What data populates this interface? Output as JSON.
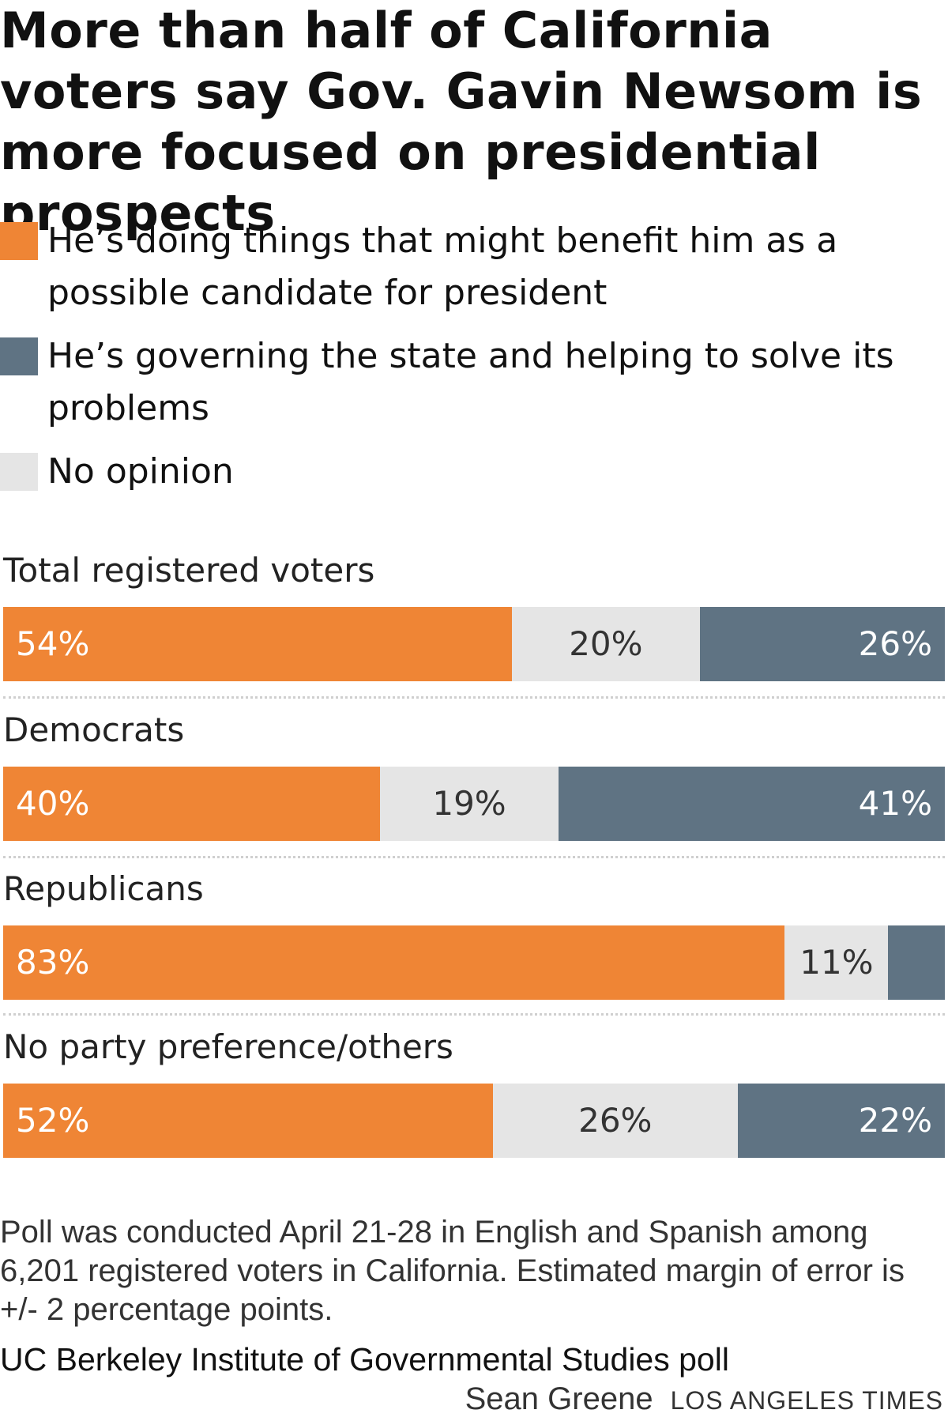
{
  "title": "More than half of California voters say Gov. Gavin Newsom is more focused on presidential prospects",
  "colors": {
    "benefit": "#ef8535",
    "no_opinion": "#e5e5e5",
    "governing": "#5f7383"
  },
  "legend": [
    {
      "key": "benefit",
      "label": "He’s doing things that might benefit him as a possible candidate for president"
    },
    {
      "key": "governing",
      "label": "He’s governing the state and helping to solve its problems"
    },
    {
      "key": "no_opinion",
      "label": "No opinion"
    }
  ],
  "chart_data": {
    "type": "bar",
    "orientation": "horizontal",
    "stacked": true,
    "title": "More than half of California voters say Gov. Gavin Newsom is more focused on presidential prospects",
    "categories": [
      "Total registered voters",
      "Democrats",
      "Republicans",
      "No party preference/others"
    ],
    "series": [
      {
        "name": "He’s doing things that might benefit him as a possible candidate for president",
        "key": "benefit",
        "values": [
          54,
          40,
          83,
          52
        ],
        "labels": [
          "54%",
          "40%",
          "83%",
          "52%"
        ]
      },
      {
        "name": "No opinion",
        "key": "no_opinion",
        "values": [
          20,
          19,
          11,
          26
        ],
        "labels": [
          "20%",
          "19%",
          "11%",
          "26%"
        ]
      },
      {
        "name": "He’s governing the state and helping to solve its problems",
        "key": "governing",
        "values": [
          26,
          41,
          6,
          22
        ],
        "labels": [
          "26%",
          "41%",
          "",
          "22%"
        ]
      }
    ],
    "xlim": [
      0,
      100
    ],
    "unit": "%",
    "grid": false,
    "legend_position": "top"
  },
  "note": "Poll was conducted April 21-28 in English and Spanish among 6,201 registered voters in California. Estimated margin of error is +/- 2 percentage points.",
  "source": "UC Berkeley Institute of Governmental Studies poll",
  "credit": {
    "author": "Sean Greene",
    "organization": "LOS ANGELES TIMES"
  }
}
